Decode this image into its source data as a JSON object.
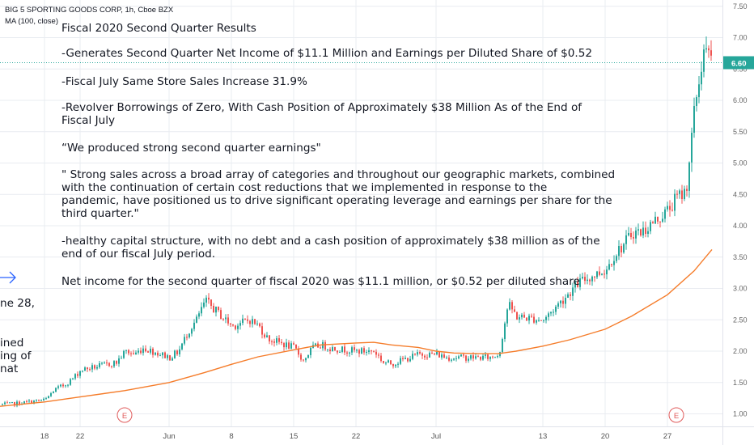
{
  "header": {
    "symbol_line": "BIG 5 SPORTING GOODS CORP, 1h, Cboe BZX",
    "indicator_line": "MA (100, close)"
  },
  "notes": [
    [
      "Fiscal 2020 Second Quarter Results"
    ],
    [
      "-Generates Second Quarter Net Income of $11.1 Million and Earnings per Diluted Share of $0.52"
    ],
    [
      "-Fiscal July Same Store Sales Increase 31.9%"
    ],
    [
      "-Revolver Borrowings of Zero, With Cash Position of Approximately $38 Million As of the End of",
      "Fiscal July"
    ],
    [
      "“We produced strong second quarter earnings\""
    ],
    [
      "\" Strong sales across a broad array of categories and throughout our geographic markets, combined",
      "with the continuation of certain cost reductions that we implemented in response to the",
      "pandemic, have positioned us to drive significant operating leverage and earnings per share for the",
      "third quarter.\""
    ],
    [
      "-healthy capital structure, with no debt and a cash position of approximately $38 million as of the",
      "end of our fiscal July period."
    ],
    [
      "Net income for the second quarter of fiscal 2020 was $11.1 million, or $0.52 per diluted share"
    ]
  ],
  "left_fragments": [
    "ne 28,",
    "ined",
    "ing of",
    "nat"
  ],
  "colors": {
    "up": "#26a69a",
    "down": "#ef5350",
    "ma": "#f57c2a",
    "price_line": "#26a69a",
    "earnings_marker": "#e05b5b",
    "arrow": "#2962ff",
    "grid": "#e9ecf1",
    "axis_text": "#666666"
  },
  "icons": {
    "arrow": "right-arrow-icon",
    "earnings": "earnings-marker-icon"
  },
  "chart_data": {
    "type": "candlestick",
    "symbol": "BIG 5 SPORTING GOODS CORP",
    "interval": "1h",
    "exchange": "Cboe BZX",
    "ylim": [
      0.8,
      7.6
    ],
    "y_ticks": [
      1.0,
      1.5,
      2.0,
      2.5,
      3.0,
      3.5,
      4.0,
      4.5,
      5.0,
      5.5,
      6.0,
      6.5,
      7.0,
      7.5
    ],
    "y_tick_labels": [
      "1.00",
      "1.50",
      "2.00",
      "2.50",
      "3.00",
      "3.50",
      "4.00",
      "4.50",
      "5.00",
      "5.50",
      "6.00",
      "6.50",
      "7.00",
      "7.50"
    ],
    "x_ticks": [
      "18",
      "22",
      "Jun",
      "8",
      "15",
      "22",
      "Jul",
      "13",
      "20",
      "27"
    ],
    "last_price": 6.6,
    "last_price_label": "6.60",
    "earnings_marker_label": "E",
    "earnings_markers": [
      {
        "date": "2020-05-27",
        "label": "E"
      },
      {
        "date": "2020-07-28",
        "label": "E"
      }
    ],
    "series": [
      {
        "kind": "close_path",
        "points": [
          [
            "2020-05-14",
            1.15
          ],
          [
            "2020-05-15",
            1.17
          ],
          [
            "2020-05-18",
            1.22
          ],
          [
            "2020-05-19",
            1.38
          ],
          [
            "2020-05-20",
            1.45
          ],
          [
            "2020-05-21",
            1.55
          ],
          [
            "2020-05-22",
            1.7
          ],
          [
            "2020-05-26",
            1.82
          ],
          [
            "2020-05-27",
            2.0
          ],
          [
            "2020-05-28",
            1.95
          ],
          [
            "2020-05-29",
            2.05
          ],
          [
            "2020-06-01",
            1.9
          ],
          [
            "2020-06-02",
            2.0
          ],
          [
            "2020-06-03",
            2.3
          ],
          [
            "2020-06-04",
            2.5
          ],
          [
            "2020-06-05",
            2.8
          ],
          [
            "2020-06-08",
            2.4
          ],
          [
            "2020-06-09",
            2.45
          ],
          [
            "2020-06-10",
            2.5
          ],
          [
            "2020-06-11",
            2.4
          ],
          [
            "2020-06-12",
            2.2
          ],
          [
            "2020-06-15",
            2.05
          ],
          [
            "2020-06-16",
            1.85
          ],
          [
            "2020-06-17",
            2.05
          ],
          [
            "2020-06-18",
            2.1
          ],
          [
            "2020-06-19",
            2.05
          ],
          [
            "2020-06-22",
            2.0
          ],
          [
            "2020-06-23",
            2.0
          ],
          [
            "2020-06-24",
            2.0
          ],
          [
            "2020-06-25",
            1.82
          ],
          [
            "2020-06-26",
            1.8
          ],
          [
            "2020-06-29",
            1.95
          ],
          [
            "2020-06-30",
            1.95
          ],
          [
            "2020-07-01",
            1.95
          ],
          [
            "2020-07-02",
            1.9
          ],
          [
            "2020-07-06",
            1.9
          ],
          [
            "2020-07-07",
            1.9
          ],
          [
            "2020-07-08",
            1.95
          ],
          [
            "2020-07-09",
            2.75
          ],
          [
            "2020-07-10",
            2.55
          ],
          [
            "2020-07-13",
            2.5
          ],
          [
            "2020-07-14",
            2.65
          ],
          [
            "2020-07-15",
            2.8
          ],
          [
            "2020-07-16",
            2.95
          ],
          [
            "2020-07-17",
            3.1
          ],
          [
            "2020-07-20",
            3.3
          ],
          [
            "2020-07-21",
            3.55
          ],
          [
            "2020-07-22",
            3.7
          ],
          [
            "2020-07-23",
            3.9
          ],
          [
            "2020-07-24",
            3.9
          ],
          [
            "2020-07-27",
            4.25
          ],
          [
            "2020-07-28",
            4.45
          ],
          [
            "2020-07-29",
            4.55
          ],
          [
            "2020-07-30",
            5.9
          ],
          [
            "2020-07-31",
            6.8
          ],
          [
            "2020-08-01",
            6.6
          ]
        ]
      },
      {
        "name": "MA (100, close)",
        "kind": "line",
        "points": [
          [
            "2020-05-13",
            1.12
          ],
          [
            "2020-05-18",
            1.19
          ],
          [
            "2020-05-22",
            1.27
          ],
          [
            "2020-05-27",
            1.37
          ],
          [
            "2020-06-01",
            1.5
          ],
          [
            "2020-06-05",
            1.66
          ],
          [
            "2020-06-08",
            1.79
          ],
          [
            "2020-06-11",
            1.91
          ],
          [
            "2020-06-15",
            2.02
          ],
          [
            "2020-06-18",
            2.1
          ],
          [
            "2020-06-22",
            2.13
          ],
          [
            "2020-06-24",
            2.14
          ],
          [
            "2020-06-26",
            2.1
          ],
          [
            "2020-06-29",
            2.06
          ],
          [
            "2020-07-01",
            2.0
          ],
          [
            "2020-07-03",
            1.97
          ],
          [
            "2020-07-06",
            1.96
          ],
          [
            "2020-07-08",
            1.96
          ],
          [
            "2020-07-10",
            2.0
          ],
          [
            "2020-07-13",
            2.08
          ],
          [
            "2020-07-16",
            2.18
          ],
          [
            "2020-07-20",
            2.35
          ],
          [
            "2020-07-23",
            2.56
          ],
          [
            "2020-07-27",
            2.9
          ],
          [
            "2020-07-30",
            3.28
          ],
          [
            "2020-08-01",
            3.62
          ]
        ]
      }
    ]
  }
}
